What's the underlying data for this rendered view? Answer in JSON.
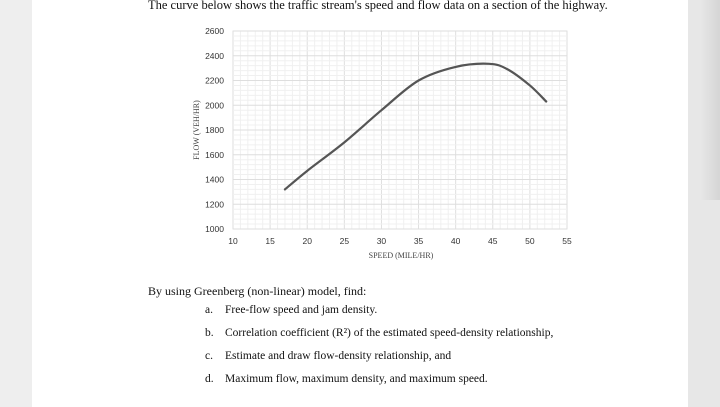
{
  "intro_text": "The curve below shows the traffic stream's speed and flow data on a section of the highway.",
  "chart_data": {
    "type": "line",
    "xlabel": "SPEED (MILE/HR)",
    "ylabel": "FLOW (VEH/HR)",
    "xlim": [
      10,
      55
    ],
    "ylim": [
      1000,
      2600
    ],
    "xticks": [
      10,
      15,
      20,
      25,
      30,
      35,
      40,
      45,
      50,
      55
    ],
    "yticks": [
      1000,
      1200,
      1400,
      1600,
      1800,
      2000,
      2200,
      2400,
      2600
    ],
    "grid": true,
    "series": [
      {
        "color": "#555555",
        "x": [
          17,
          20,
          25,
          30,
          35,
          40,
          44.5,
          47,
          50,
          52.2
        ],
        "y": [
          1320,
          1470,
          1700,
          1960,
          2200,
          2310,
          2335,
          2290,
          2160,
          2030
        ]
      }
    ]
  },
  "model_text": "By using Greenberg (non-linear) model, find:",
  "questions": [
    {
      "letter": "a.",
      "text": "Free-flow speed and jam density."
    },
    {
      "letter": "b.",
      "text": "Correlation coefficient (R²) of the estimated speed-density relationship,"
    },
    {
      "letter": "c.",
      "text": "Estimate and draw flow-density relationship, and"
    },
    {
      "letter": "d.",
      "text": "Maximum flow, maximum density, and maximum speed."
    }
  ]
}
